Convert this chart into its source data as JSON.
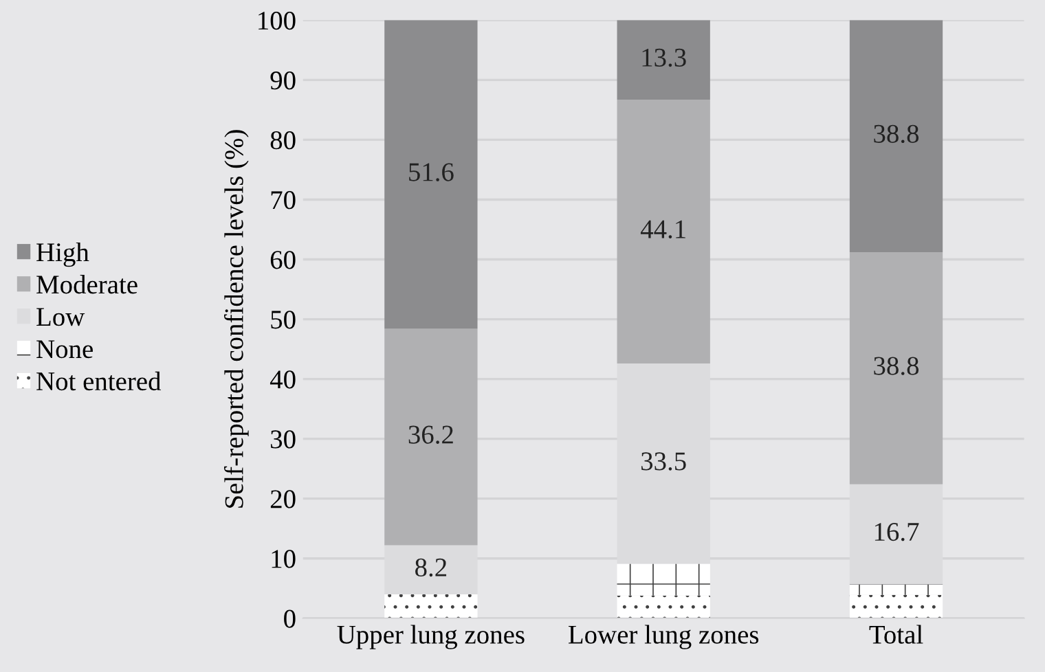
{
  "chart_data": {
    "type": "bar",
    "stacked": true,
    "ylabel": "Self-reported confidence levels (%)",
    "categories": [
      "Upper lung zones",
      "Lower lung zones",
      "Total"
    ],
    "series": [
      {
        "name": "Not entered",
        "color": "#ffffff",
        "values": [
          4.0,
          3.8,
          3.9
        ],
        "value_labels": [
          null,
          null,
          null
        ]
      },
      {
        "name": "None",
        "color": "#ffffff",
        "values": [
          0,
          5.3,
          1.8
        ],
        "value_labels": [
          null,
          null,
          null
        ]
      },
      {
        "name": "Low",
        "color": "#dcdcde",
        "values": [
          8.2,
          33.5,
          16.7
        ],
        "value_labels": [
          "8.2",
          "33.5",
          "16.7"
        ]
      },
      {
        "name": "Moderate",
        "color": "#b0b0b2",
        "values": [
          36.2,
          44.1,
          38.8
        ],
        "value_labels": [
          "36.2",
          "44.1",
          "38.8"
        ]
      },
      {
        "name": "High",
        "color": "#8c8c8e",
        "values": [
          51.6,
          13.3,
          38.8
        ],
        "value_labels": [
          "51.6",
          "13.3",
          "38.8"
        ]
      }
    ],
    "ylim": [
      0,
      100
    ],
    "yticks": [
      0,
      10,
      20,
      30,
      40,
      50,
      60,
      70,
      80,
      90,
      100
    ],
    "grid": "y",
    "legend": "left"
  }
}
